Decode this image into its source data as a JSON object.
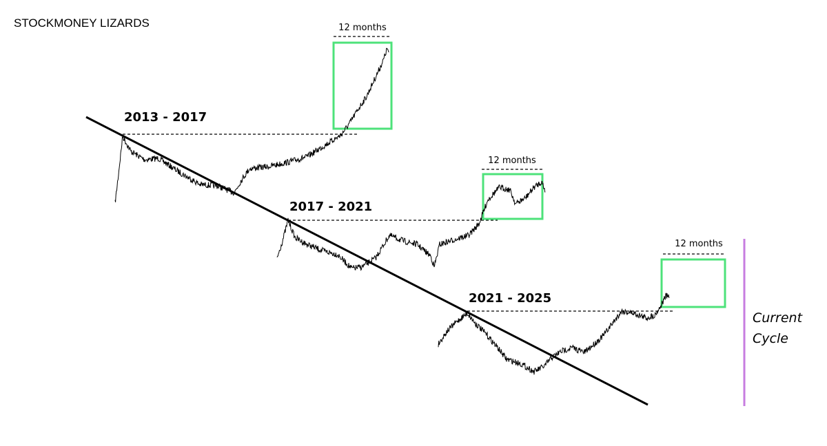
{
  "header": {
    "title": "STOCKMONEY LIZARDS"
  },
  "cycles": [
    {
      "label": "2013 - 2017",
      "window": "12 months"
    },
    {
      "label": "2017 - 2021",
      "window": "12 months"
    },
    {
      "label": "2021 - 2025",
      "window": "12 months"
    }
  ],
  "current": {
    "lines": [
      "Current",
      "Cycle"
    ]
  }
}
